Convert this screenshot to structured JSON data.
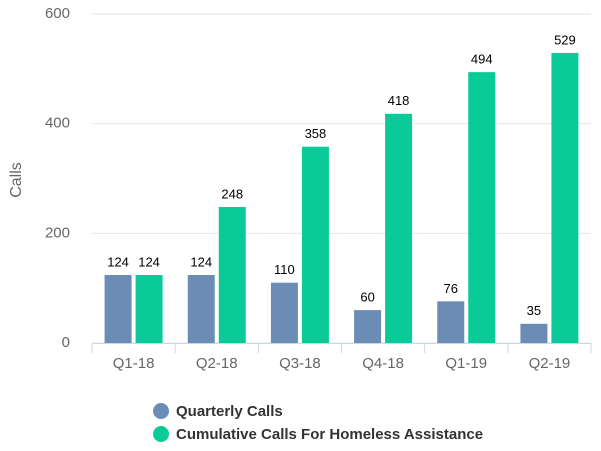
{
  "chart_data": {
    "type": "bar",
    "y_label": "Calls",
    "categories": [
      "Q1-18",
      "Q2-18",
      "Q3-18",
      "Q4-18",
      "Q1-19",
      "Q2-19"
    ],
    "series": [
      {
        "name": "Quarterly Calls",
        "color": "#6b8db5",
        "values": [
          124,
          124,
          110,
          60,
          76,
          35
        ]
      },
      {
        "name": "Cumulative Calls For Homeless Assistance",
        "color": "#0acb97",
        "values": [
          124,
          248,
          358,
          418,
          494,
          529
        ]
      }
    ],
    "ylim": [
      0,
      600
    ],
    "yticks": [
      0,
      200,
      400,
      600
    ],
    "grid": true
  }
}
